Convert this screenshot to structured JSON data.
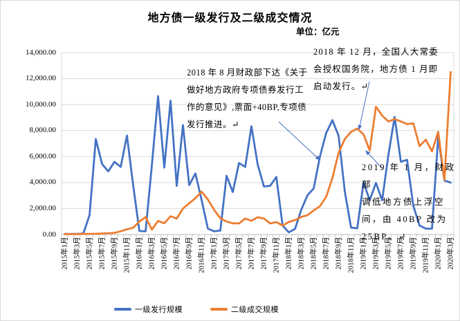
{
  "header": {
    "title": "地方债一级发行及二级成交情况",
    "unit": "单位：亿元"
  },
  "chart_data": {
    "type": "line",
    "title": "地方债一级发行及二级成交情况",
    "unit": "亿元",
    "legend_position": "bottom",
    "grid": true,
    "grid_color": "#d9d9d9",
    "axis_color": "#bfbfbf",
    "ylim": [
      0,
      14000
    ],
    "xtick_every": 2,
    "yticks": [
      {
        "value": 14000,
        "label": "14,000.00"
      },
      {
        "value": 12000,
        "label": "12,000.00"
      },
      {
        "value": 10000,
        "label": "10,000.00"
      },
      {
        "value": 8000,
        "label": "8,000.00"
      },
      {
        "value": 6000,
        "label": "6,000.00"
      },
      {
        "value": 4000,
        "label": "4,000.00"
      },
      {
        "value": 2000,
        "label": "2,000.00"
      },
      {
        "value": 0,
        "label": "0.00"
      }
    ],
    "months": [
      "2015年1月",
      "2015年2月",
      "2015年3月",
      "2015年4月",
      "2015年5月",
      "2015年6月",
      "2015年7月",
      "2015年8月",
      "2015年9月",
      "2015年10月",
      "2015年11月",
      "2015年12月",
      "2016年1月",
      "2016年2月",
      "2016年3月",
      "2016年4月",
      "2016年5月",
      "2016年6月",
      "2016年7月",
      "2016年8月",
      "2016年9月",
      "2016年10月",
      "2016年11月",
      "2016年12月",
      "2017年1月",
      "2017年2月",
      "2017年3月",
      "2017年4月",
      "2017年5月",
      "2017年6月",
      "2017年7月",
      "2017年8月",
      "2017年9月",
      "2017年10月",
      "2017年11月",
      "2017年12月",
      "2018年1月",
      "2018年2月",
      "2018年3月",
      "2018年4月",
      "2018年5月",
      "2018年6月",
      "2018年7月",
      "2018年8月",
      "2018年9月",
      "2018年10月",
      "2018年11月",
      "2018年12月",
      "2019年1月",
      "2019年2月",
      "2019年3月",
      "2019年4月",
      "2019年5月",
      "2019年6月",
      "2019年7月",
      "2019年8月",
      "2019年9月",
      "2019年10月",
      "2019年11月",
      "2019年12月",
      "2020年1月",
      "2020年2月",
      "2020年3月"
    ],
    "series": [
      {
        "name": "一级发行规模",
        "color": "#4472c4",
        "values": [
          40,
          40,
          50,
          80,
          1500,
          7350,
          5430,
          4860,
          5590,
          5200,
          7620,
          3800,
          270,
          250,
          5300,
          10650,
          5150,
          10300,
          3750,
          8420,
          3800,
          4700,
          2650,
          450,
          250,
          300,
          4520,
          3270,
          5500,
          5200,
          8330,
          5400,
          3700,
          3740,
          4430,
          700,
          170,
          430,
          1900,
          3020,
          3550,
          6000,
          7800,
          8800,
          7600,
          3300,
          530,
          480,
          4010,
          2640,
          3970,
          2640,
          6130,
          9050,
          5600,
          5750,
          2200,
          700,
          450,
          450,
          7500,
          4160,
          4000
        ]
      },
      {
        "name": "二级成交规模",
        "color": "#ed7d31",
        "values": [
          30,
          30,
          35,
          40,
          50,
          60,
          80,
          100,
          130,
          250,
          400,
          520,
          1000,
          1340,
          380,
          1050,
          870,
          1410,
          1230,
          2000,
          2400,
          2800,
          3300,
          2700,
          1900,
          1250,
          1000,
          860,
          850,
          1230,
          1060,
          1330,
          1230,
          850,
          960,
          690,
          960,
          1120,
          1350,
          1490,
          1860,
          2180,
          2900,
          4340,
          6290,
          7350,
          7900,
          8150,
          7700,
          6470,
          9830,
          9150,
          8700,
          8880,
          8700,
          8500,
          8550,
          6800,
          7300,
          6400,
          7900,
          4200,
          12500
        ]
      }
    ]
  },
  "annotations": {
    "arrow_color": "#4472c4",
    "items": [
      {
        "text": "2018 年 8 月财政部下达《关于\n做好地方政府专项债券发行工\n作的意见》,票面+40BP,专项债\n发行推进。↵",
        "arrow": [
          402,
          175,
          461,
          230
        ]
      },
      {
        "text": "2018 年 12 月，全国人大常委\n会授权国务院，地方债 1 月即\n启动发行。↵",
        "arrow": [
          533,
          117,
          518,
          186
        ]
      },
      {
        "text": "2019 年 1 月，财政部\n调低地方债上浮空\n间，由 40BP 改为\n25BP。↵",
        "arrow": [
          552,
          243,
          528,
          217
        ]
      }
    ]
  }
}
